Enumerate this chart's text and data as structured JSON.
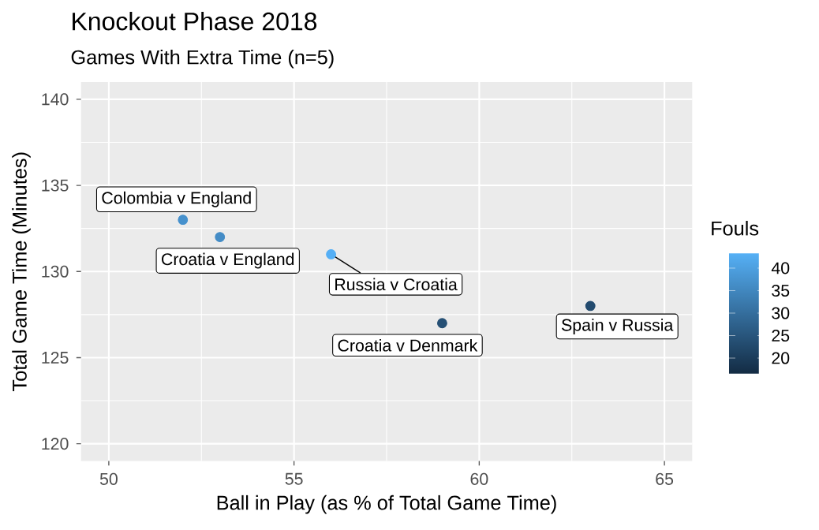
{
  "chart_data": {
    "type": "scatter",
    "title": "Knockout Phase 2018",
    "subtitle": "Games With Extra Time (n=5)",
    "xlabel": "Ball in Play (as % of Total Game Time)",
    "ylabel": "Total Game Time (Minutes)",
    "clabel": "Fouls",
    "x": [
      52,
      53,
      56,
      59,
      63
    ],
    "values": [
      133,
      132,
      131,
      127,
      128
    ],
    "cvalues": [
      37,
      36,
      43,
      24,
      23
    ],
    "clim": [
      16.5,
      43.5
    ],
    "cticks": [
      20,
      25,
      30,
      35,
      40
    ],
    "xlim": [
      49.25,
      65.75
    ],
    "ylim": [
      119,
      141
    ],
    "xticks": [
      50,
      55,
      60,
      65
    ],
    "yticks": [
      120,
      125,
      130,
      135,
      140
    ],
    "grid": true,
    "marker": "circle",
    "annotations": [
      {
        "text": "Colombia v England",
        "x": 52,
        "y": 133
      },
      {
        "text": "Croatia v England",
        "x": 53,
        "y": 132
      },
      {
        "text": "Russia v Croatia",
        "x": 56,
        "y": 131
      },
      {
        "text": "Croatia v Denmark",
        "x": 59,
        "y": 127
      },
      {
        "text": "Spain v Russia",
        "x": 63,
        "y": 128
      }
    ]
  }
}
